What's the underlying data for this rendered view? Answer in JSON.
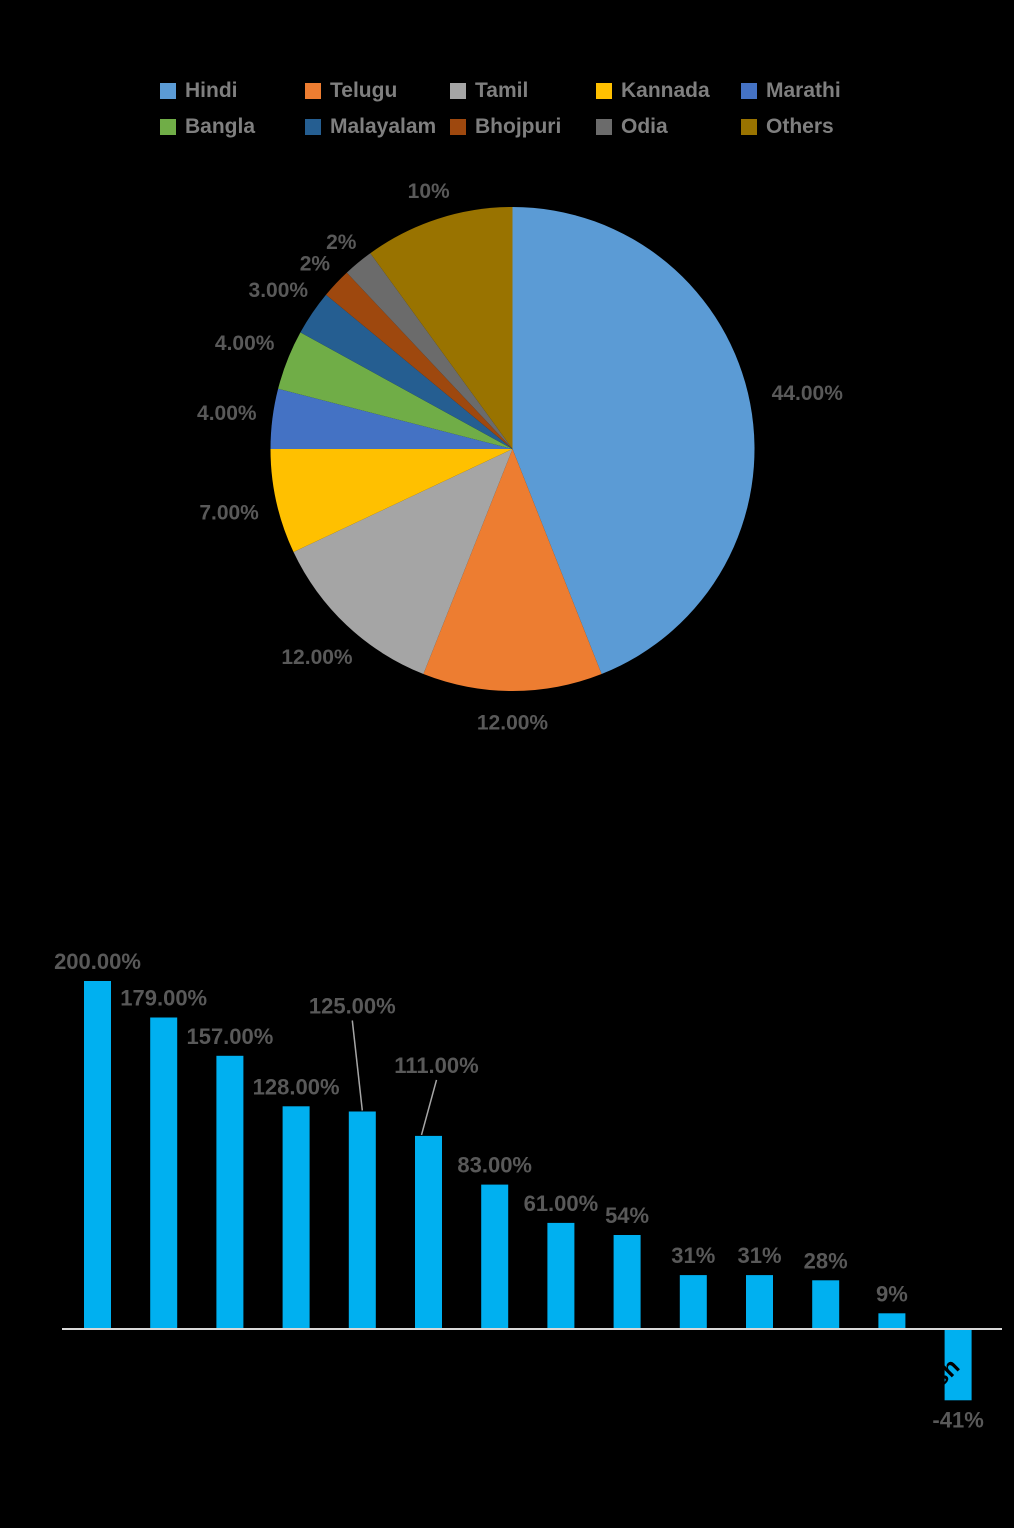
{
  "canvas": {
    "background": "#000000"
  },
  "legend": {
    "text_color": "#7F7F7F",
    "rows": 2,
    "columns": 5,
    "items": [
      {
        "label": "Hindi",
        "color": "#5B9BD5"
      },
      {
        "label": "Telugu",
        "color": "#ED7D31"
      },
      {
        "label": "Tamil",
        "color": "#A5A5A5"
      },
      {
        "label": "Kannada",
        "color": "#FFC000"
      },
      {
        "label": "Marathi",
        "color": "#4472C4"
      },
      {
        "label": "Bangla",
        "color": "#70AD47"
      },
      {
        "label": "Malayalam",
        "color": "#255E91"
      },
      {
        "label": "Bhojpuri",
        "color": "#9E480E"
      },
      {
        "label": "Odia",
        "color": "#6B6B6B"
      },
      {
        "label": "Others",
        "color": "#997300"
      }
    ]
  },
  "chart_data": [
    {
      "type": "pie",
      "categories": [
        "Hindi",
        "Telugu",
        "Tamil",
        "Kannada",
        "Marathi",
        "Bangla",
        "Malayalam",
        "Bhojpuri",
        "Odia",
        "Others"
      ],
      "values": [
        44,
        12,
        12,
        7,
        4,
        4,
        3,
        2,
        2,
        10
      ],
      "data_labels": [
        "44.00%",
        "12.00%",
        "12.00%",
        "7.00%",
        "4.00%",
        "4.00%",
        "3.00%",
        "2%",
        "2%",
        "10%"
      ],
      "colors": [
        "#5B9BD5",
        "#ED7D31",
        "#A5A5A5",
        "#FFC000",
        "#4472C4",
        "#70AD47",
        "#255E91",
        "#9E480E",
        "#6B6B6B",
        "#997300"
      ],
      "label_color": "#595959",
      "legend_position": "top",
      "start_angle_deg": 0,
      "direction": "clockwise",
      "label_radius_factors": [
        1.24,
        1.13,
        1.18,
        1.2,
        1.19,
        1.19,
        1.17,
        1.12,
        1.11,
        1.12
      ]
    },
    {
      "type": "bar",
      "values": [
        200,
        179,
        157,
        128,
        125,
        111,
        83,
        61,
        54,
        31,
        31,
        28,
        9,
        -41
      ],
      "data_labels": [
        "200.00%",
        "179.00%",
        "157.00%",
        "128.00%",
        "125.00%",
        "111.00%",
        "83.00%",
        "61.00%",
        "54%",
        "31%",
        "31%",
        "28%",
        "9%",
        "-41%"
      ],
      "bar_color": "#00B0F0",
      "label_color": "#595959",
      "axis_color": "#D9D9D9",
      "leader_line_color": "#A6A6A6",
      "baseline_value": 0,
      "ylim": [
        -50,
        210
      ],
      "grid": false,
      "callout_labels": [
        {
          "index": 4,
          "label_dx": -10,
          "rise_above_bar": 98,
          "leader_end_dx": 0
        },
        {
          "index": 5,
          "label_dx": 8,
          "rise_above_bar": 63,
          "leader_end_dx": -7
        }
      ],
      "rotated_category_fragment": {
        "bar_index": 13,
        "text": "sh",
        "color": "#000000",
        "rotation_deg": -45
      }
    }
  ]
}
